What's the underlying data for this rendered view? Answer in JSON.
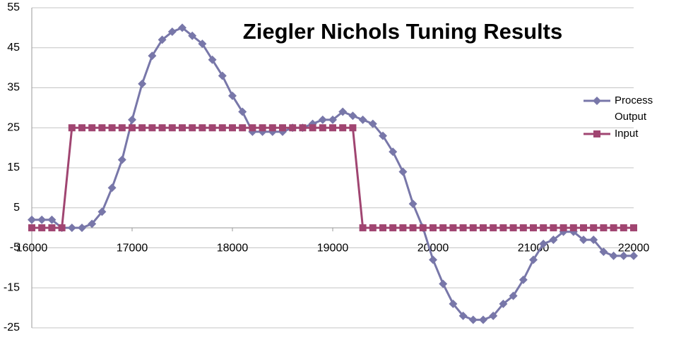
{
  "chart_data": {
    "type": "line",
    "title": "Ziegler Nichols Tuning Results",
    "x": [
      16000,
      16100,
      16200,
      16300,
      16400,
      16500,
      16600,
      16700,
      16800,
      16900,
      17000,
      17100,
      17200,
      17300,
      17400,
      17500,
      17600,
      17700,
      17800,
      17900,
      18000,
      18100,
      18200,
      18300,
      18400,
      18500,
      18600,
      18700,
      18800,
      18900,
      19000,
      19100,
      19200,
      19300,
      19400,
      19500,
      19600,
      19700,
      19800,
      19900,
      20000,
      20100,
      20200,
      20300,
      20400,
      20500,
      20600,
      20700,
      20800,
      20900,
      21000,
      21100,
      21200,
      21300,
      21400,
      21500,
      21600,
      21700,
      21800,
      21900,
      22000
    ],
    "series": [
      {
        "name": "Process Output",
        "color": "#7877a9",
        "marker": "diamond",
        "values": [
          2,
          2,
          2,
          0,
          0,
          0,
          1,
          4,
          10,
          17,
          27,
          36,
          43,
          47,
          49,
          50,
          48,
          46,
          42,
          38,
          33,
          29,
          24,
          24,
          24,
          24,
          25,
          25,
          26,
          27,
          27,
          29,
          28,
          27,
          26,
          23,
          19,
          14,
          6,
          0,
          -8,
          -14,
          -19,
          -22,
          -23,
          -23,
          -22,
          -19,
          -17,
          -13,
          -8,
          -4,
          -3,
          -1,
          -1,
          -3,
          -3,
          -6,
          -7,
          -7,
          -7
        ]
      },
      {
        "name": "Input",
        "color": "#a04571",
        "marker": "square",
        "values": [
          0,
          0,
          0,
          0,
          25,
          25,
          25,
          25,
          25,
          25,
          25,
          25,
          25,
          25,
          25,
          25,
          25,
          25,
          25,
          25,
          25,
          25,
          25,
          25,
          25,
          25,
          25,
          25,
          25,
          25,
          25,
          25,
          25,
          0,
          0,
          0,
          0,
          0,
          0,
          0,
          0,
          0,
          0,
          0,
          0,
          0,
          0,
          0,
          0,
          0,
          0,
          0,
          0,
          0,
          0,
          0,
          0,
          0,
          0,
          0,
          0
        ]
      }
    ],
    "xlim": [
      16000,
      22000
    ],
    "xticks": [
      16000,
      17000,
      18000,
      19000,
      20000,
      21000,
      22000
    ],
    "ylim": [
      -25,
      55
    ],
    "yticks": [
      55,
      45,
      35,
      25,
      15,
      5,
      -5,
      -15,
      -25
    ],
    "grid": true,
    "legend": "right"
  }
}
